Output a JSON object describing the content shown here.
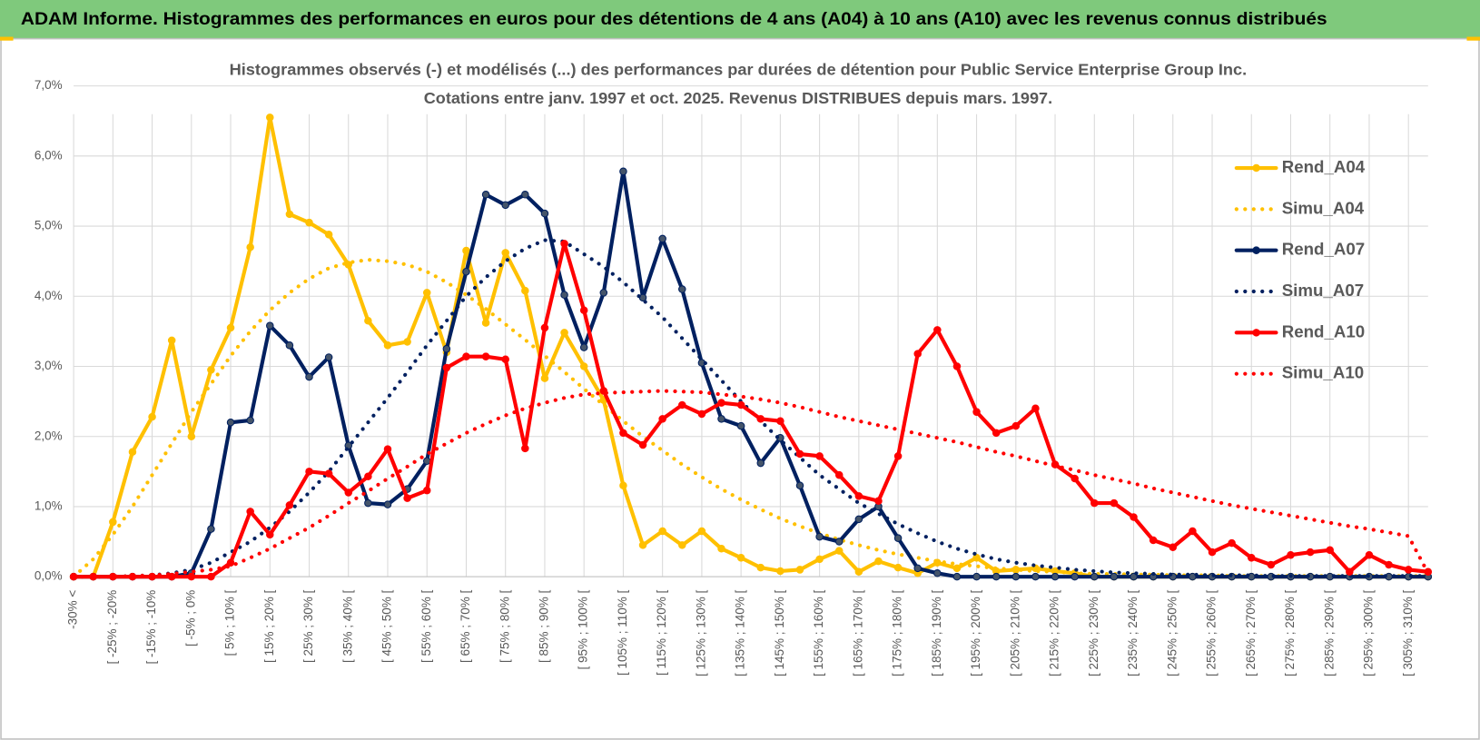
{
  "header": {
    "title": "ADAM Informe. Histogrammes des performances en euros pour des détentions de 4 ans (A04) à 10 ans (A10) avec les revenus connus distribués"
  },
  "chart_data": {
    "type": "line",
    "title": "Histogrammes observés (-) et modélisés (...) des performances par durées de détention pour Public Service Enterprise Group Inc.",
    "subtitle": "Cotations entre janv. 1997 et oct. 2025.  Revenus DISTRIBUES depuis mars. 1997.",
    "categories": [
      "-30% <",
      null,
      "[ -25% ; -20%",
      null,
      "[ -15% ; -10%",
      null,
      "[ -5% ; 0%",
      null,
      "[ 5% ; 10% [",
      null,
      "[ 15% ; 20% [",
      null,
      "[ 25% ; 30% [",
      null,
      "[ 35% ; 40% [",
      null,
      "[ 45% ; 50% [",
      null,
      "[ 55% ; 60% [",
      null,
      "[ 65% ; 70% [",
      null,
      "[ 75% ; 80% [",
      null,
      "[ 85% ; 90% [",
      null,
      "[ 95% ; 100% [",
      null,
      "[ 105% ; 110% [",
      null,
      "[ 115% ; 120% [",
      null,
      "[ 125% ; 130% [",
      null,
      "[ 135% ; 140% [",
      null,
      "[ 145% ; 150% [",
      null,
      "[ 155% ; 160% [",
      null,
      "[ 165% ; 170% [",
      null,
      "[ 175% ; 180% [",
      null,
      "[ 185% ; 190% [",
      null,
      "[ 195% ; 200% [",
      null,
      "[ 205% ; 210% [",
      null,
      "[ 215% ; 220% [",
      null,
      "[ 225% ; 230% [",
      null,
      "[ 235% ; 240% [",
      null,
      "[ 245% ; 250% [",
      null,
      "[ 255% ; 260% [",
      null,
      "[ 265% ; 270% [",
      null,
      "[ 275% ; 280% [",
      null,
      "[ 285% ; 290% [",
      null,
      "[ 295% ; 300% [",
      null,
      "[ 305% ; 310% [",
      null
    ],
    "series": [
      {
        "name": "Rend_A04",
        "color": "#ffc000",
        "line_style": "solid",
        "markers": true,
        "values": [
          0,
          0,
          0.78,
          1.78,
          2.28,
          3.37,
          2.0,
          2.95,
          3.55,
          4.7,
          6.55,
          5.17,
          5.05,
          4.88,
          4.45,
          3.65,
          3.3,
          3.35,
          4.05,
          3.2,
          4.65,
          3.62,
          4.62,
          4.08,
          2.83,
          3.48,
          3.0,
          2.52,
          1.3,
          0.45,
          0.65,
          0.45,
          0.65,
          0.4,
          0.27,
          0.13,
          0.08,
          0.1,
          0.25,
          0.37,
          0.07,
          0.22,
          0.13,
          0.05,
          0.2,
          0.12,
          0.27,
          0.08,
          0.1,
          0.12,
          0.08,
          0.05,
          0,
          0,
          0,
          0,
          0,
          0,
          0,
          0,
          0,
          0,
          0,
          0,
          0,
          0,
          0,
          0,
          0,
          0
        ]
      },
      {
        "name": "Simu_A04",
        "color": "#ffc000",
        "line_style": "dotted",
        "markers": false,
        "values": [
          0,
          0.25,
          0.6,
          1.0,
          1.45,
          1.9,
          2.35,
          2.75,
          3.15,
          3.5,
          3.8,
          4.05,
          4.25,
          4.4,
          4.48,
          4.52,
          4.5,
          4.45,
          4.35,
          4.2,
          4.02,
          3.82,
          3.6,
          3.38,
          3.15,
          2.92,
          2.68,
          2.45,
          2.22,
          2.0,
          1.8,
          1.6,
          1.42,
          1.25,
          1.1,
          0.96,
          0.83,
          0.72,
          0.62,
          0.53,
          0.45,
          0.38,
          0.32,
          0.27,
          0.22,
          0.18,
          0.15,
          0.12,
          0.1,
          0.08,
          0.07,
          0.05,
          0.04,
          0.04,
          0.03,
          0.03,
          0.02,
          0.02,
          0.02,
          0.01,
          0.01,
          0.01,
          0.01,
          0.01,
          0.01,
          0.01,
          0.01,
          0.01,
          0.01,
          0.01
        ]
      },
      {
        "name": "Rend_A07",
        "color": "#002060",
        "line_style": "solid",
        "markers": true,
        "values": [
          0,
          0,
          0,
          0,
          0,
          0,
          0.05,
          0.68,
          2.2,
          2.23,
          3.58,
          3.3,
          2.85,
          3.13,
          1.87,
          1.05,
          1.03,
          1.25,
          1.65,
          3.25,
          4.35,
          5.45,
          5.3,
          5.45,
          5.18,
          4.02,
          3.27,
          4.05,
          5.78,
          3.98,
          4.82,
          4.1,
          3.05,
          2.25,
          2.15,
          1.62,
          1.98,
          1.3,
          0.57,
          0.5,
          0.82,
          1.0,
          0.55,
          0.12,
          0.05,
          0,
          0,
          0,
          0,
          0,
          0,
          0,
          0,
          0,
          0,
          0,
          0,
          0,
          0,
          0,
          0,
          0,
          0,
          0,
          0,
          0,
          0,
          0,
          0,
          0
        ]
      },
      {
        "name": "Simu_A07",
        "color": "#002060",
        "line_style": "dotted",
        "markers": false,
        "values": [
          0,
          0,
          0,
          0.01,
          0.02,
          0.05,
          0.1,
          0.2,
          0.35,
          0.5,
          0.7,
          0.93,
          1.2,
          1.5,
          1.85,
          2.2,
          2.55,
          2.92,
          3.3,
          3.65,
          4.0,
          4.27,
          4.5,
          4.68,
          4.8,
          4.78,
          4.6,
          4.42,
          4.2,
          3.95,
          3.7,
          3.4,
          3.1,
          2.8,
          2.5,
          2.22,
          1.95,
          1.7,
          1.45,
          1.25,
          1.05,
          0.9,
          0.75,
          0.62,
          0.5,
          0.4,
          0.32,
          0.25,
          0.2,
          0.16,
          0.13,
          0.1,
          0.08,
          0.06,
          0.05,
          0.04,
          0.03,
          0.03,
          0.02,
          0.02,
          0.02,
          0.01,
          0.01,
          0.01,
          0.01,
          0.01,
          0.01,
          0.01,
          0.01,
          0.01
        ]
      },
      {
        "name": "Rend_A10",
        "color": "#ff0000",
        "line_style": "solid",
        "markers": true,
        "values": [
          0,
          0,
          0,
          0,
          0,
          0,
          0,
          0,
          0.2,
          0.93,
          0.6,
          1.02,
          1.5,
          1.47,
          1.2,
          1.43,
          1.82,
          1.12,
          1.23,
          2.98,
          3.14,
          3.14,
          3.1,
          1.83,
          3.55,
          4.75,
          3.8,
          2.65,
          2.05,
          1.88,
          2.25,
          2.45,
          2.32,
          2.48,
          2.45,
          2.25,
          2.22,
          1.75,
          1.72,
          1.45,
          1.15,
          1.08,
          1.72,
          3.18,
          3.52,
          3.0,
          2.35,
          2.05,
          2.15,
          2.4,
          1.6,
          1.4,
          1.05,
          1.05,
          0.85,
          0.52,
          0.42,
          0.65,
          0.35,
          0.48,
          0.27,
          0.17,
          0.31,
          0.35,
          0.38,
          0.07,
          0.31,
          0.17,
          0.1,
          0.07
        ]
      },
      {
        "name": "Simu_A10",
        "color": "#ff0000",
        "line_style": "dotted",
        "markers": false,
        "values": [
          0,
          0,
          0,
          0.01,
          0.02,
          0.04,
          0.07,
          0.1,
          0.15,
          0.27,
          0.4,
          0.55,
          0.7,
          0.87,
          1.05,
          1.22,
          1.4,
          1.57,
          1.75,
          1.9,
          2.05,
          2.18,
          2.3,
          2.4,
          2.48,
          2.55,
          2.6,
          2.62,
          2.63,
          2.64,
          2.65,
          2.64,
          2.63,
          2.6,
          2.57,
          2.53,
          2.48,
          2.42,
          2.35,
          2.28,
          2.22,
          2.16,
          2.1,
          2.04,
          1.98,
          1.92,
          1.85,
          1.78,
          1.72,
          1.65,
          1.58,
          1.52,
          1.45,
          1.39,
          1.33,
          1.26,
          1.2,
          1.14,
          1.08,
          1.02,
          0.97,
          0.92,
          0.87,
          0.82,
          0.77,
          0.72,
          0.68,
          0.63,
          0.58,
          0.05
        ]
      }
    ],
    "ylim": [
      0,
      7
    ],
    "yticks": [
      {
        "value": 0,
        "label": "0,0%"
      },
      {
        "value": 1,
        "label": "1,0%"
      },
      {
        "value": 2,
        "label": "2,0%"
      },
      {
        "value": 3,
        "label": "3,0%"
      },
      {
        "value": 4,
        "label": "4,0%"
      },
      {
        "value": 5,
        "label": "5,0%"
      },
      {
        "value": 6,
        "label": "6,0%"
      },
      {
        "value": 7,
        "label": "7,0%"
      }
    ],
    "grid": true,
    "legend": "right"
  }
}
